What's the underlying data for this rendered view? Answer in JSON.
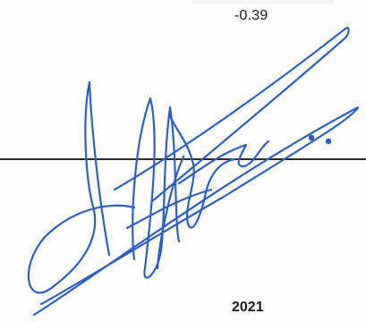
{
  "document": {
    "amount": "-0.39",
    "year": "2021"
  },
  "signature": {
    "kind": "handwritten-signature",
    "ink_color": "#2f5fc4"
  },
  "rule_color": "#2b2b2b"
}
